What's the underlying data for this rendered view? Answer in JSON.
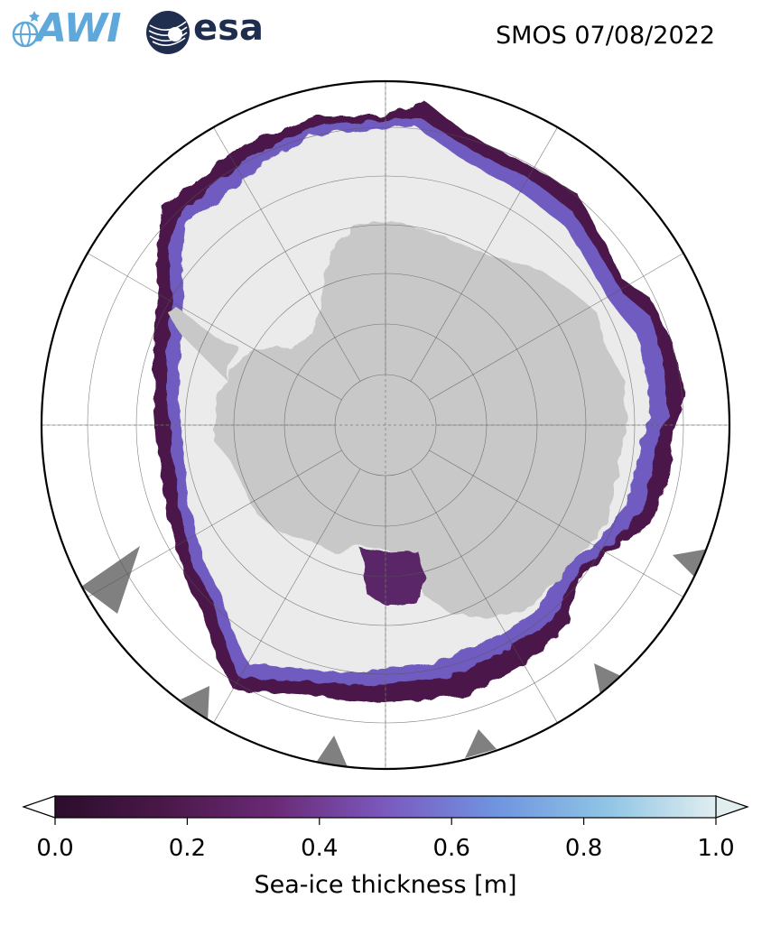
{
  "header": {
    "logos": {
      "awi": {
        "text": "AWI",
        "icon": "globe-icon",
        "color": "#5fa8dc"
      },
      "esa": {
        "text": "esa",
        "icon": "esa-globe-icon",
        "color": "#1f2d4e"
      }
    },
    "title": "SMOS 07/08/2022"
  },
  "map": {
    "projection": "south-polar-stereographic",
    "ocean_color": "#ffffff",
    "land_color": "#c8c8c8",
    "ice_background_color": "#ebebeb",
    "missing_color": "#808080",
    "graticule": true
  },
  "colorbar": {
    "title": "Sea-ice thickness [m]",
    "min": 0.0,
    "max": 1.0,
    "extend": "both",
    "tick_labels": [
      "0.0",
      "0.2",
      "0.4",
      "0.6",
      "0.8",
      "1.0"
    ],
    "colors": [
      "#2b0d2c",
      "#4b1849",
      "#6a2a76",
      "#7b59be",
      "#6f94e0",
      "#8ec4e4",
      "#e0eef0"
    ]
  }
}
